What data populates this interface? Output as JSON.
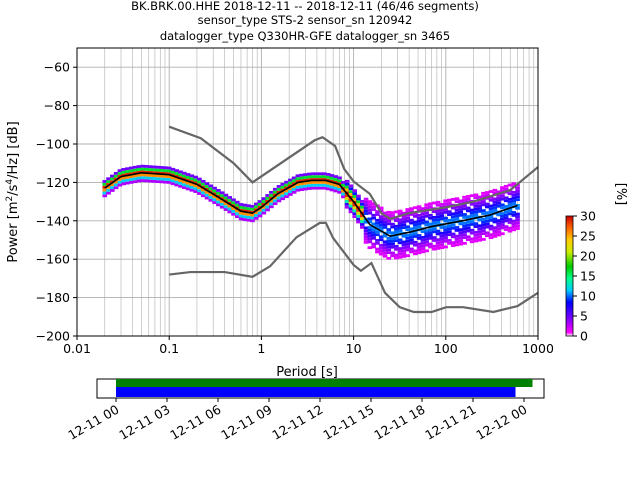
{
  "title_lines": [
    "BK.BRK.00.HHE   2018-12-11 -- 2018-12-11  (46/46 segments)",
    "sensor_type STS-2 sensor_sn 120942",
    "datalogger_type Q330HR-GFE datalogger_sn 3465"
  ],
  "colorbar": {
    "label": "[%]",
    "ticks": [
      "0",
      "5",
      "10",
      "15",
      "20",
      "25",
      "30"
    ],
    "range": [
      0,
      30
    ]
  },
  "chart_data": [
    {
      "type": "heatmap",
      "title": "",
      "xlabel": "Period [s]",
      "ylabel": "Power [m²/s⁴/Hz] [dB]",
      "xscale": "log",
      "xlim": [
        0.01,
        1000
      ],
      "ylim": [
        -200,
        -50
      ],
      "grid": true,
      "xticks": [
        "0.01",
        "0.1",
        "1",
        "10",
        "100",
        "1000"
      ],
      "yticks": [
        "−200",
        "−180",
        "−160",
        "−140",
        "−120",
        "−100",
        "−80",
        "−60"
      ],
      "mode_curve": {
        "period": [
          0.02,
          0.03,
          0.05,
          0.1,
          0.2,
          0.35,
          0.6,
          0.8,
          1.0,
          1.5,
          2.5,
          3.5,
          5,
          7,
          10,
          15,
          25,
          40,
          70,
          150,
          300,
          600
        ],
        "power": [
          -123,
          -117,
          -115,
          -116,
          -121,
          -128,
          -135,
          -136,
          -133,
          -126,
          -120,
          -119,
          -119,
          -121,
          -130,
          -142,
          -148,
          -146,
          -143,
          -140,
          -137,
          -132
        ]
      },
      "noise_models": [
        {
          "period": [
            0.1,
            0.22,
            0.5,
            0.8,
            3.8,
            4.6,
            6.3,
            7.9,
            10,
            15,
            20,
            25,
            40,
            100,
            200,
            500,
            1000
          ],
          "power": [
            -91,
            -97,
            -110,
            -120,
            -98,
            -96.5,
            -101,
            -113,
            -119.5,
            -126,
            -136,
            -139,
            -136,
            -133,
            -130,
            -124,
            -112
          ]
        },
        {
          "period": [
            0.1,
            0.17,
            0.4,
            0.8,
            1.24,
            2.4,
            4.3,
            5,
            6,
            10,
            12,
            15.6,
            21.9,
            31.6,
            45,
            70,
            101,
            154,
            328,
            600,
            1000
          ],
          "power": [
            -168,
            -166.7,
            -166.7,
            -169.2,
            -163.7,
            -148.6,
            -141.1,
            -141.1,
            -149,
            -163,
            -166,
            -162,
            -177.5,
            -185,
            -187.5,
            -187.5,
            -185,
            -185,
            -187.5,
            -184.4,
            -177.5
          ]
        }
      ],
      "density_note_values": {
        "max_percent": 30
      }
    },
    {
      "type": "bar",
      "title": "",
      "xlabel": "",
      "ylabel": "",
      "x_ticks": [
        "12-11 00",
        "12-11 03",
        "12-11 06",
        "12-11 09",
        "12-11 12",
        "12-11 15",
        "12-11 18",
        "12-11 21",
        "12-12 00"
      ],
      "series": [
        {
          "span_hours": [
            0,
            24.5
          ],
          "color": "#008000"
        },
        {
          "span_hours": [
            0,
            23.5
          ],
          "color": "#0000ff"
        }
      ]
    }
  ]
}
